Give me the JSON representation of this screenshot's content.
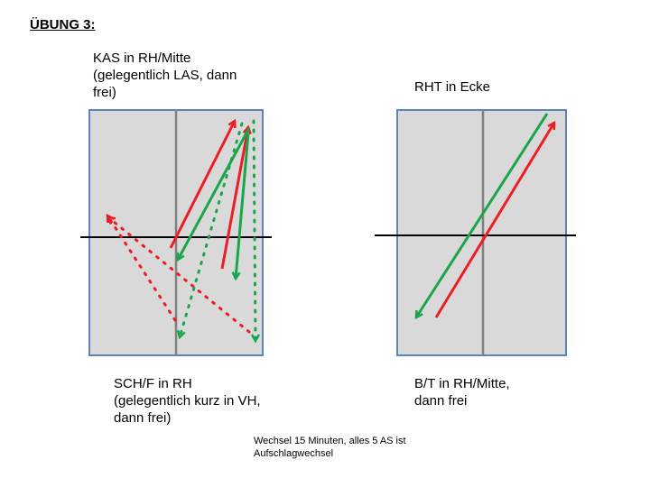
{
  "title": "ÜBUNG 3:",
  "left_diagram": {
    "label_top": "KAS in RH/Mitte\n(gelegentlich LAS, dann\nfrei)",
    "label_bottom": "SCH/F in RH\n(gelegentlich kurz in VH,\ndann frei)"
  },
  "right_diagram": {
    "label_top": "RHT in Ecke",
    "label_bottom": "B/T in RH/Mitte,\ndann frei"
  },
  "footnote": "Wechsel 15 Minuten, alles 5 AS ist\nAufschlagwechsel",
  "colors": {
    "red": "#ee1c25",
    "green": "#1aa54a",
    "court_fill": "#d9d9d9",
    "court_border": "#5b83be",
    "center_line": "#808080",
    "net": "#000000"
  }
}
